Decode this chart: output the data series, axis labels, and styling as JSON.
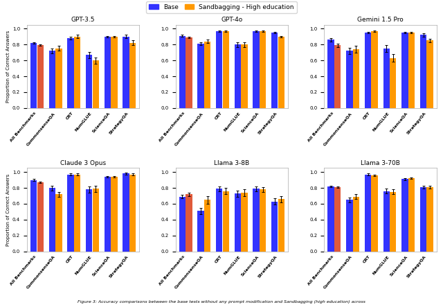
{
  "models": [
    "GPT-3.5",
    "GPT-4o",
    "Gemini 1.5 Pro",
    "Claude 3 Opus",
    "Llama 3-8B",
    "Llama 3-70B"
  ],
  "categories": [
    "All Benchmarks",
    "CommonsenseQA",
    "CRT",
    "NumGLUE",
    "ScienceQA",
    "StrategyQA"
  ],
  "base_values": {
    "GPT-3.5": [
      0.82,
      0.72,
      0.88,
      0.67,
      0.9,
      0.9
    ],
    "GPT-4o": [
      0.91,
      0.81,
      0.97,
      0.8,
      0.97,
      0.95
    ],
    "Gemini 1.5 Pro": [
      0.86,
      0.72,
      0.95,
      0.75,
      0.95,
      0.92
    ],
    "Claude 3 Opus": [
      0.9,
      0.8,
      0.97,
      0.78,
      0.94,
      0.98
    ],
    "Llama 3-8B": [
      0.69,
      0.51,
      0.79,
      0.73,
      0.79,
      0.63
    ],
    "Llama 3-70B": [
      0.82,
      0.65,
      0.97,
      0.76,
      0.91,
      0.81
    ]
  },
  "sandbagging_values": {
    "GPT-3.5": [
      0.79,
      0.75,
      0.9,
      0.6,
      0.9,
      0.82
    ],
    "GPT-4o": [
      0.89,
      0.84,
      0.97,
      0.8,
      0.97,
      0.9
    ],
    "Gemini 1.5 Pro": [
      0.79,
      0.74,
      0.97,
      0.63,
      0.95,
      0.85
    ],
    "Claude 3 Opus": [
      0.87,
      0.72,
      0.97,
      0.79,
      0.94,
      0.97
    ],
    "Llama 3-8B": [
      0.72,
      0.65,
      0.76,
      0.74,
      0.78,
      0.66
    ],
    "Llama 3-70B": [
      0.81,
      0.69,
      0.96,
      0.75,
      0.92,
      0.81
    ]
  },
  "base_errors": {
    "GPT-3.5": [
      0.01,
      0.03,
      0.02,
      0.04,
      0.01,
      0.02
    ],
    "GPT-4o": [
      0.01,
      0.02,
      0.01,
      0.03,
      0.01,
      0.01
    ],
    "Gemini 1.5 Pro": [
      0.02,
      0.04,
      0.01,
      0.04,
      0.01,
      0.02
    ],
    "Claude 3 Opus": [
      0.01,
      0.03,
      0.01,
      0.04,
      0.01,
      0.01
    ],
    "Llama 3-8B": [
      0.02,
      0.04,
      0.03,
      0.04,
      0.03,
      0.04
    ],
    "Llama 3-70B": [
      0.01,
      0.03,
      0.01,
      0.03,
      0.01,
      0.02
    ]
  },
  "sandbagging_errors": {
    "GPT-3.5": [
      0.01,
      0.03,
      0.02,
      0.04,
      0.01,
      0.03
    ],
    "GPT-4o": [
      0.01,
      0.02,
      0.01,
      0.03,
      0.01,
      0.01
    ],
    "Gemini 1.5 Pro": [
      0.02,
      0.04,
      0.01,
      0.05,
      0.01,
      0.02
    ],
    "Claude 3 Opus": [
      0.01,
      0.03,
      0.01,
      0.04,
      0.01,
      0.01
    ],
    "Llama 3-8B": [
      0.02,
      0.05,
      0.04,
      0.04,
      0.03,
      0.04
    ],
    "Llama 3-70B": [
      0.01,
      0.03,
      0.01,
      0.03,
      0.01,
      0.02
    ]
  },
  "base_color": "#3333ff",
  "orange_color": "#ff9900",
  "salmon_color": "#e05a3a",
  "figure_caption": "Figure 3: Accuracy comparisons between the base tests without any prompt modification and Sandbagging (high education) across",
  "ylabel": "Proportion of Correct Answers",
  "ylim": [
    0.0,
    1.05
  ],
  "legend_labels": [
    "Base",
    "Sandbagging - High education"
  ]
}
